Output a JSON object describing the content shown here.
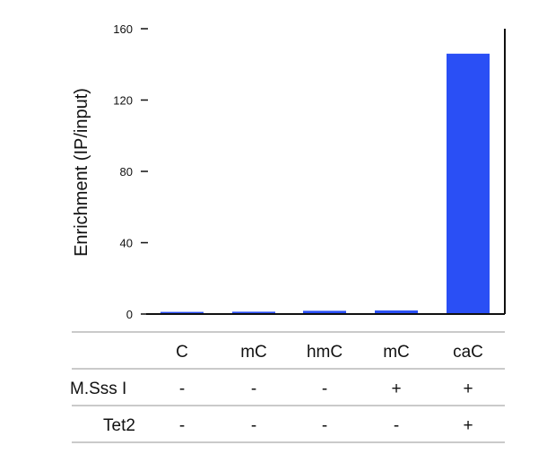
{
  "chart_data": {
    "type": "bar",
    "ylabel": "Enrichment (IP/input)",
    "ylim": [
      0,
      160
    ],
    "yticks": [
      0,
      40,
      80,
      120,
      160
    ],
    "categories": [
      "C",
      "mC",
      "hmC",
      "mC",
      "caC"
    ],
    "values": [
      1.2,
      1.3,
      1.8,
      2.0,
      146
    ],
    "bar_color": "#2a4ff5",
    "conditions": [
      {
        "label": "M.Sss I",
        "values": [
          "-",
          "-",
          "-",
          "+",
          "+"
        ]
      },
      {
        "label": "Tet2",
        "values": [
          "-",
          "-",
          "-",
          "-",
          "+"
        ]
      }
    ],
    "grid": false
  }
}
